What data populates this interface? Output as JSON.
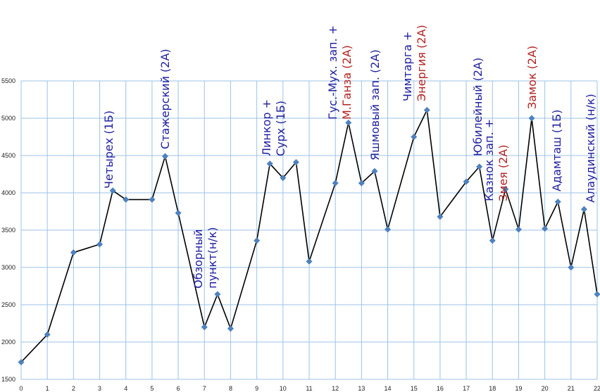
{
  "chart_data": {
    "type": "line",
    "title": "",
    "xlabel": "",
    "ylabel": "",
    "xlim": [
      0,
      22
    ],
    "ylim": [
      1500,
      5500
    ],
    "x_ticks": [
      0,
      1,
      2,
      3,
      4,
      5,
      6,
      7,
      8,
      9,
      10,
      11,
      12,
      13,
      14,
      15,
      16,
      17,
      18,
      19,
      20,
      21,
      22
    ],
    "y_ticks": [
      1500,
      2000,
      2500,
      3000,
      3500,
      4000,
      4500,
      5000,
      5500
    ],
    "grid": true,
    "colors": {
      "line": "#000000",
      "marker": "#4f81bd",
      "grid": "#9dc3e6",
      "label_blue": "#1f1f9f",
      "label_red": "#b22222"
    },
    "series": [
      {
        "x": [
          0,
          1,
          2,
          3,
          3.5,
          4,
          5,
          5.5,
          6,
          7,
          7.5,
          8,
          9,
          9.5,
          10,
          10.5,
          11,
          12,
          12.5,
          13,
          13.5,
          14,
          15,
          15.5,
          16,
          17,
          17.5,
          18,
          18.5,
          19,
          19.5,
          20,
          20.5,
          21,
          21.5,
          22
        ],
        "y": [
          1730,
          2100,
          3200,
          3310,
          4030,
          3910,
          3910,
          4490,
          3730,
          2200,
          2640,
          2180,
          3360,
          4390,
          4200,
          4410,
          3080,
          4130,
          4940,
          4130,
          4290,
          3510,
          4750,
          5110,
          3680,
          4150,
          4350,
          3360,
          4050,
          3510,
          5000,
          3520,
          3880,
          3000,
          3780,
          2640
        ]
      }
    ],
    "annotations": [
      {
        "lines": [
          {
            "text": "Четырех (1Б)",
            "color": "blue"
          }
        ]
      },
      {
        "lines": [
          {
            "text": "Стажерский (2А)",
            "color": "blue"
          }
        ]
      },
      {
        "lines": [
          {
            "text": "Обзорный",
            "color": "blue"
          },
          {
            "text": "пункт(н/к)",
            "color": "blue"
          }
        ]
      },
      {
        "lines": [
          {
            "text": "Линкор +",
            "color": "blue"
          },
          {
            "text": "Сурх (1Б)",
            "color": "blue"
          }
        ]
      },
      {
        "lines": [
          {
            "text": "Гус.-Мух. зап. +",
            "color": "blue"
          },
          {
            "text": "М.Ганза (2А)",
            "color": "red"
          }
        ]
      },
      {
        "lines": [
          {
            "text": "Яшмовый зап. (2А)",
            "color": "blue"
          }
        ]
      },
      {
        "lines": [
          {
            "text": "Чимтарга +",
            "color": "blue"
          },
          {
            "text": "Энергия (2А)",
            "color": "red"
          }
        ]
      },
      {
        "lines": [
          {
            "text": "Юбилейный (2А)",
            "color": "blue"
          }
        ]
      },
      {
        "lines": [
          {
            "text": "Казнок зап. +",
            "color": "blue"
          },
          {
            "text": "Змея (2А)",
            "color": "red"
          }
        ]
      },
      {
        "lines": [
          {
            "text": "Замок (2А)",
            "color": "red"
          }
        ]
      },
      {
        "lines": [
          {
            "text": "Адамташ (1Б)",
            "color": "blue"
          }
        ]
      },
      {
        "lines": [
          {
            "text": "Алаудинский (н/к)",
            "color": "blue"
          }
        ]
      }
    ]
  }
}
